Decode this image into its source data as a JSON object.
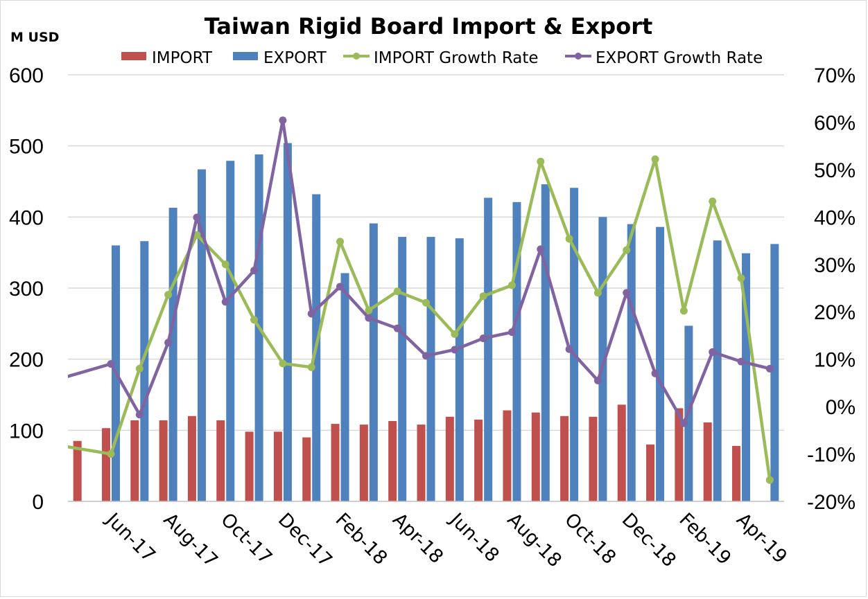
{
  "chart_data": {
    "type": "bar",
    "title": "Taiwan Rigid Board Import & Export",
    "y_left_label": "M USD",
    "y_left_lim": [
      0,
      600
    ],
    "y_left_ticks": [
      "0",
      "100",
      "200",
      "300",
      "400",
      "500",
      "600"
    ],
    "y_right_lim": [
      -0.2,
      0.7
    ],
    "y_right_ticks": [
      "-20%",
      "-10%",
      "0%",
      "10%",
      "20%",
      "30%",
      "40%",
      "50%",
      "60%",
      "70%"
    ],
    "grid": true,
    "legend_position": "top",
    "categories": [
      "May-17",
      "Jun-17",
      "Jul-17",
      "Aug-17",
      "Sep-17",
      "Oct-17",
      "Nov-17",
      "Dec-17",
      "Jan-18",
      "Feb-18",
      "Mar-18",
      "Apr-18",
      "May-18",
      "Jun-18",
      "Jul-18",
      "Aug-18",
      "Sep-18",
      "Oct-18",
      "Nov-18",
      "Dec-18",
      "Jan-19",
      "Feb-19",
      "Mar-19",
      "Apr-19",
      "May-19"
    ],
    "x_tick_labels": [
      "Jun-17",
      "Aug-17",
      "Oct-17",
      "Dec-17",
      "Feb-18",
      "Apr-18",
      "Jun-18",
      "Aug-18",
      "Oct-18",
      "Dec-18",
      "Feb-19",
      "Apr-19"
    ],
    "series": [
      {
        "name": "IMPORT",
        "type": "bar",
        "axis": "left",
        "color": "#c0504d",
        "values": [
          85,
          103,
          114,
          114,
          120,
          114,
          98,
          98,
          90,
          109,
          108,
          113,
          108,
          119,
          115,
          128,
          125,
          120,
          119,
          136,
          80,
          131,
          111,
          78,
          null
        ]
      },
      {
        "name": "EXPORT",
        "type": "bar",
        "axis": "left",
        "color": "#4f81bd",
        "values": [
          null,
          360,
          366,
          413,
          467,
          479,
          488,
          504,
          432,
          321,
          391,
          372,
          372,
          370,
          427,
          421,
          446,
          441,
          400,
          390,
          386,
          247,
          367,
          349,
          362
        ]
      },
      {
        "name": "IMPORT Growth Rate",
        "type": "line",
        "axis": "right",
        "color": "#9bbb59",
        "values": [
          -0.08,
          -0.1,
          0.08,
          0.236,
          0.362,
          0.3,
          0.183,
          0.091,
          0.083,
          0.348,
          0.203,
          0.243,
          0.219,
          0.153,
          0.233,
          0.256,
          0.517,
          0.354,
          0.24,
          0.33,
          0.522,
          0.202,
          0.433,
          0.271,
          -0.155
        ]
      },
      {
        "name": "EXPORT Growth Rate",
        "type": "line",
        "axis": "right",
        "color": "#8064a2",
        "values": [
          0.055,
          0.09,
          -0.017,
          0.135,
          0.399,
          0.221,
          0.287,
          0.604,
          0.196,
          0.253,
          0.187,
          0.165,
          0.107,
          0.12,
          0.144,
          0.157,
          0.332,
          0.121,
          0.055,
          0.24,
          0.07,
          -0.035,
          0.115,
          0.095,
          0.08
        ]
      }
    ]
  }
}
